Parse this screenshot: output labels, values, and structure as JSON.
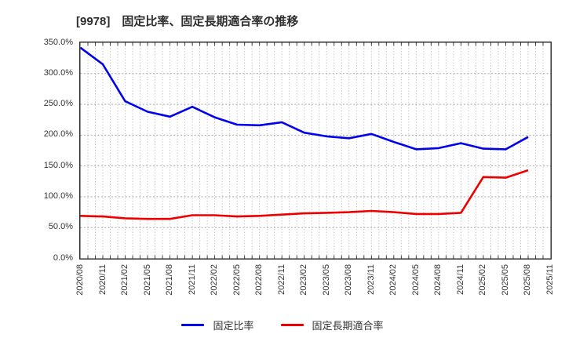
{
  "chart_data": {
    "type": "line",
    "title": "[9978]　固定比率、固定長期適合率の推移",
    "xlabel": "",
    "ylabel": "",
    "ylim": [
      0,
      350
    ],
    "grid": true,
    "legend_position": "bottom",
    "categories": [
      "2020/08",
      "2020/11",
      "2021/02",
      "2021/05",
      "2021/08",
      "2021/11",
      "2022/02",
      "2022/05",
      "2022/08",
      "2022/11",
      "2023/02",
      "2023/05",
      "2023/08",
      "2023/11",
      "2024/02",
      "2024/05",
      "2024/08",
      "2024/11",
      "2025/02",
      "2025/05",
      "2025/08",
      "2025/11"
    ],
    "series": [
      {
        "name": "固定比率",
        "color": "#0000EE",
        "values": [
          342,
          315,
          255,
          238,
          230,
          246,
          229,
          217,
          216,
          221,
          204,
          198,
          195,
          202,
          189,
          177,
          179,
          187,
          178,
          177,
          197,
          null
        ]
      },
      {
        "name": "固定長期適合率",
        "color": "#EE0000",
        "values": [
          69,
          68,
          65,
          64,
          64,
          70,
          70,
          68,
          69,
          71,
          73,
          74,
          75,
          77,
          75,
          72,
          72,
          74,
          132,
          131,
          143,
          null
        ]
      }
    ],
    "yticks": [
      {
        "label": "350.0%",
        "value": 350
      },
      {
        "label": "300.0%",
        "value": 300
      },
      {
        "label": "250.0%",
        "value": 250
      },
      {
        "label": "200.0%",
        "value": 200
      },
      {
        "label": "150.0%",
        "value": 150
      },
      {
        "label": "100.0%",
        "value": 100
      },
      {
        "label": "50.0%",
        "value": 50
      },
      {
        "label": "0.0%",
        "value": 0
      }
    ]
  },
  "colors": {
    "axis_border": "#2e2e2e",
    "grid_vertical": "#a8a8a8",
    "grid_horizontal": "#999999",
    "tick": "#333333",
    "text": "#333333"
  }
}
